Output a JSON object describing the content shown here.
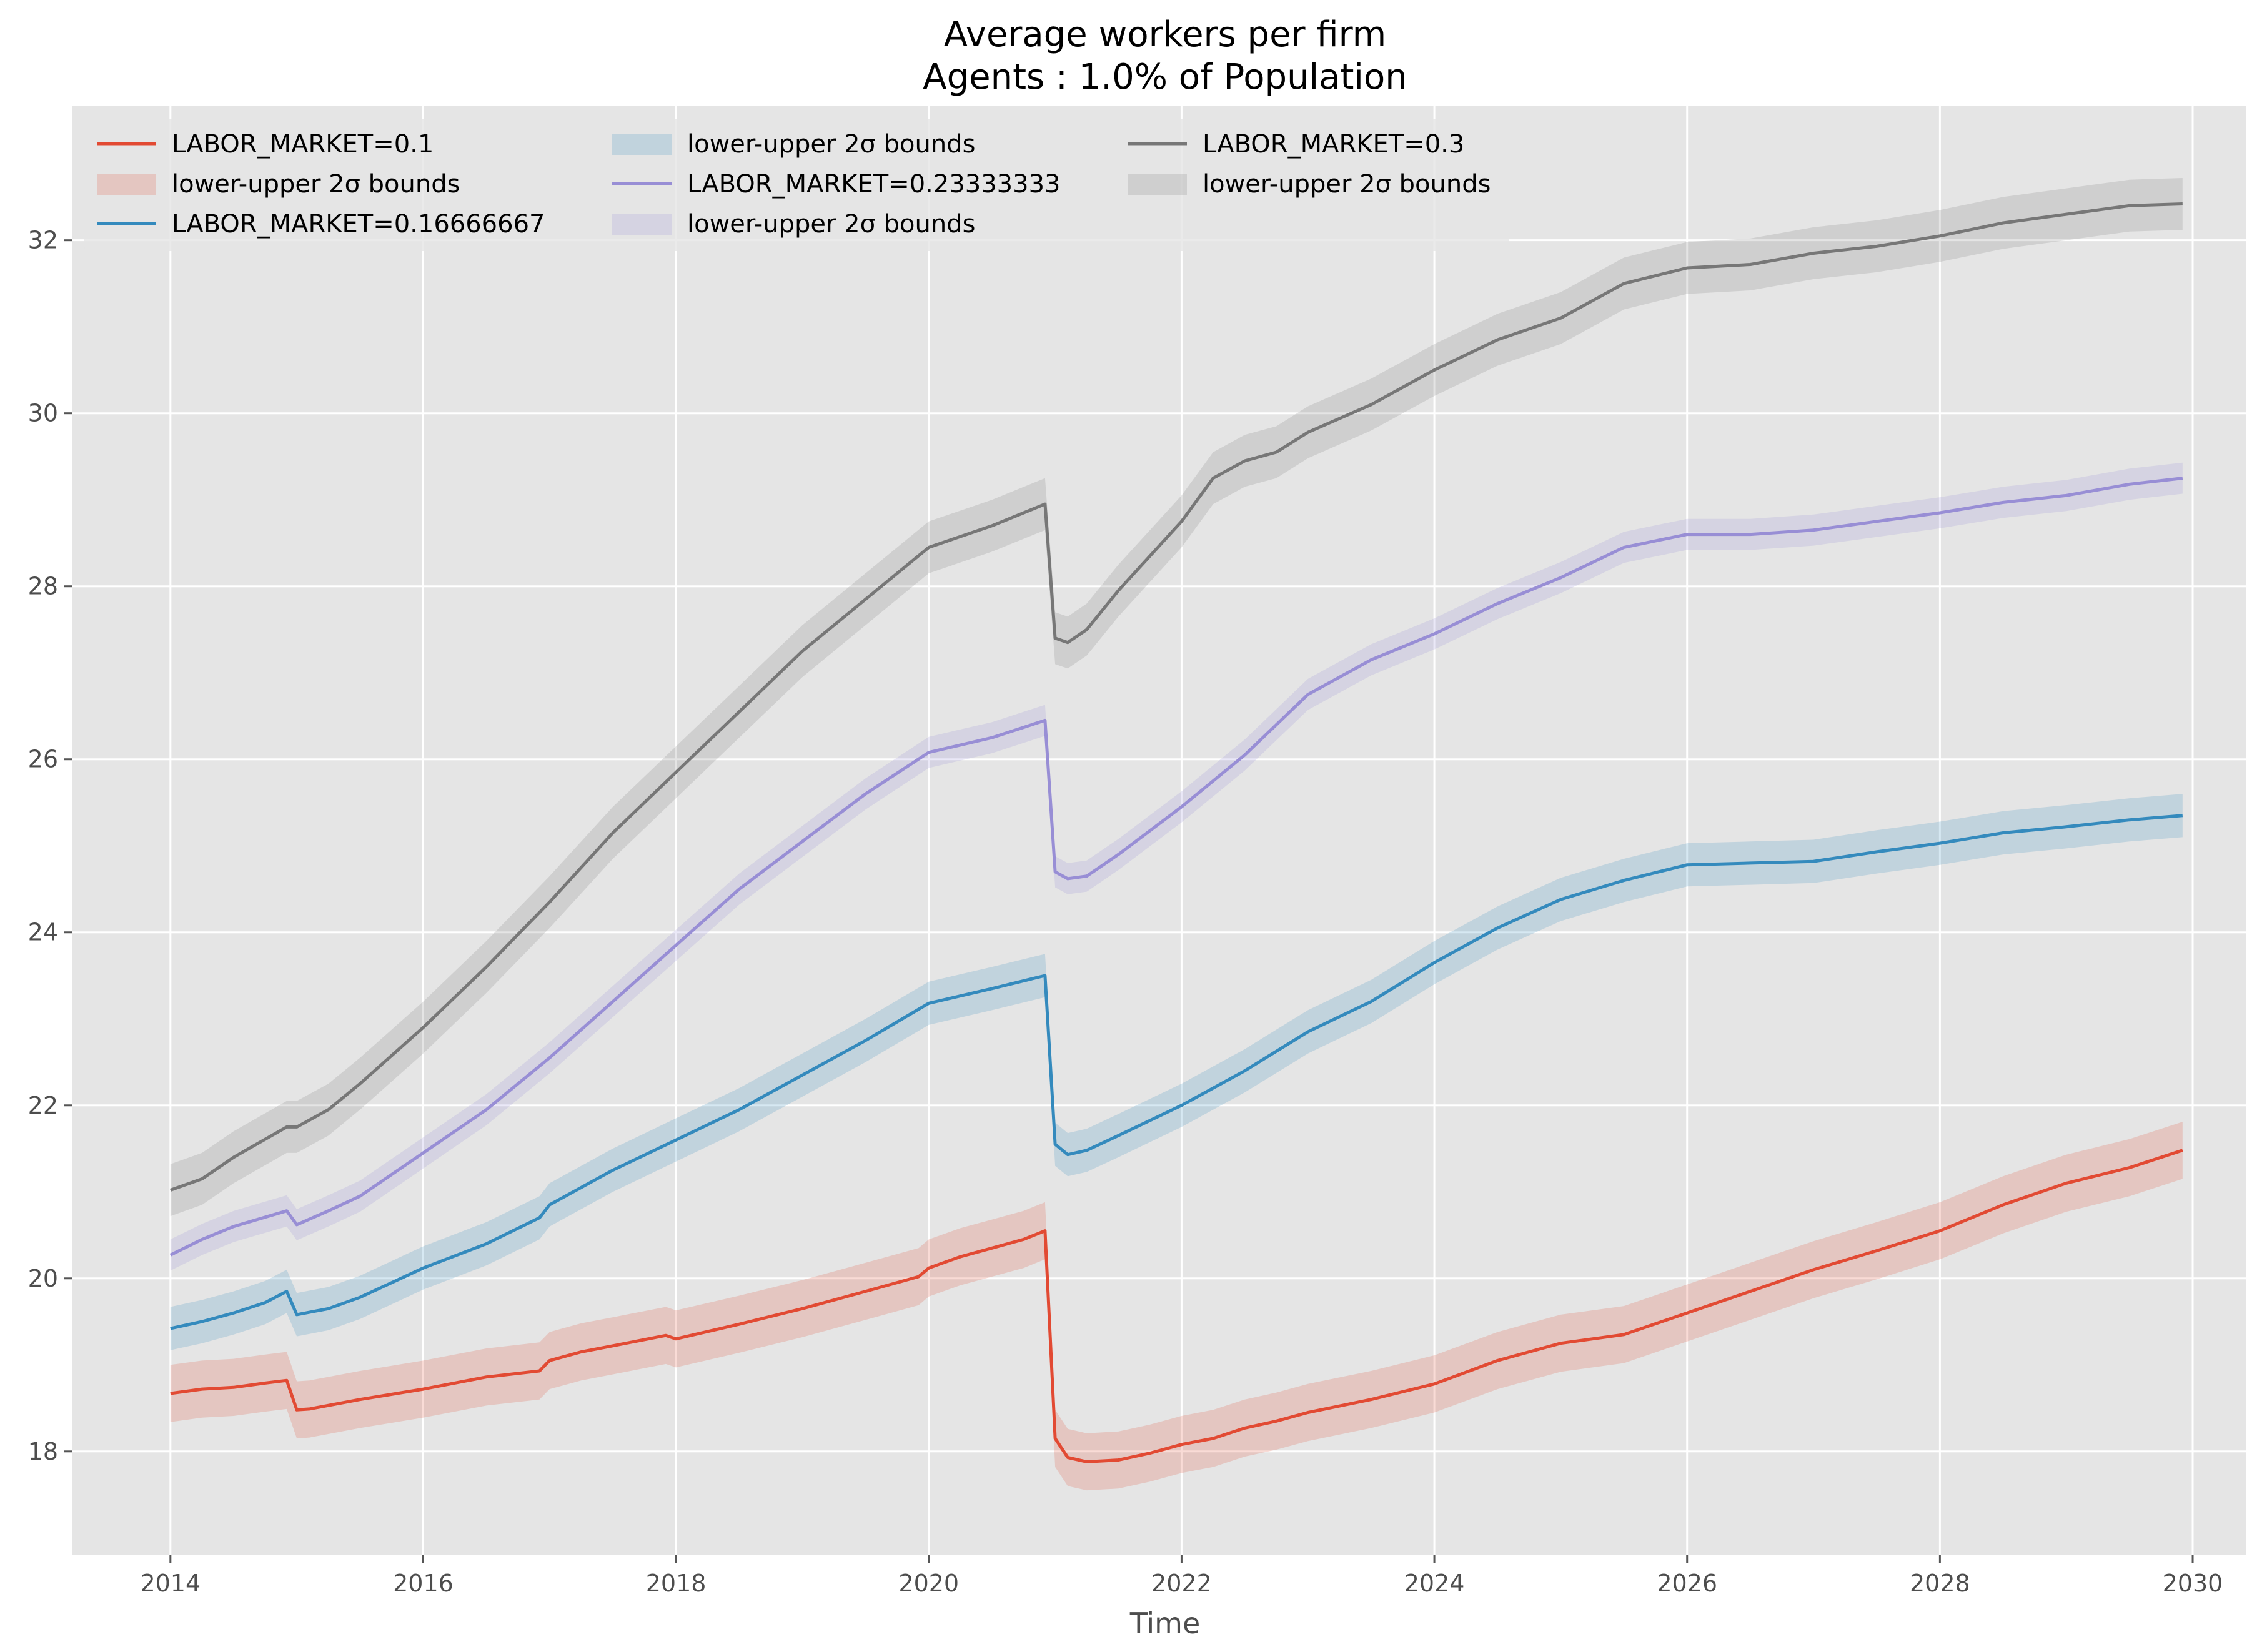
{
  "chart_data": {
    "type": "line",
    "title": "Average workers per firm",
    "subtitle": "Agents : 1.0% of Population",
    "xlabel": "Time",
    "ylabel": "",
    "xlim": [
      2013.22,
      2030.42
    ],
    "ylim": [
      16.8,
      33.55
    ],
    "x_ticks": [
      2014,
      2016,
      2018,
      2020,
      2022,
      2024,
      2026,
      2028,
      2030
    ],
    "x_tick_labels": [
      "2014",
      "2016",
      "2018",
      "2020",
      "2022",
      "2024",
      "2026",
      "2028",
      "2030"
    ],
    "y_ticks": [
      18,
      20,
      22,
      24,
      26,
      28,
      30,
      32
    ],
    "y_tick_labels": [
      "18",
      "20",
      "22",
      "24",
      "26",
      "28",
      "30",
      "32"
    ],
    "grid": true,
    "legend_position": "top-left",
    "legend_columns": 3,
    "background": "#e5e5e5",
    "band_label": "lower-upper 2σ bounds",
    "series": [
      {
        "name": "LABOR_MARKET=0.1",
        "color": "#E24A33",
        "band_halfwidth": 0.33,
        "points": [
          [
            2014.0,
            18.67
          ],
          [
            2014.25,
            18.72
          ],
          [
            2014.5,
            18.74
          ],
          [
            2014.75,
            18.79
          ],
          [
            2014.92,
            18.82
          ],
          [
            2015.0,
            18.48
          ],
          [
            2015.1,
            18.49
          ],
          [
            2015.5,
            18.6
          ],
          [
            2016.0,
            18.72
          ],
          [
            2016.5,
            18.86
          ],
          [
            2016.92,
            18.93
          ],
          [
            2017.0,
            19.05
          ],
          [
            2017.25,
            19.15
          ],
          [
            2017.5,
            19.22
          ],
          [
            2017.92,
            19.34
          ],
          [
            2018.0,
            19.3
          ],
          [
            2018.5,
            19.47
          ],
          [
            2019.0,
            19.65
          ],
          [
            2019.5,
            19.85
          ],
          [
            2019.92,
            20.02
          ],
          [
            2020.0,
            20.12
          ],
          [
            2020.25,
            20.25
          ],
          [
            2020.5,
            20.35
          ],
          [
            2020.75,
            20.45
          ],
          [
            2020.92,
            20.55
          ],
          [
            2021.0,
            18.15
          ],
          [
            2021.1,
            17.93
          ],
          [
            2021.25,
            17.88
          ],
          [
            2021.5,
            17.9
          ],
          [
            2021.75,
            17.98
          ],
          [
            2022.0,
            18.08
          ],
          [
            2022.25,
            18.15
          ],
          [
            2022.5,
            18.27
          ],
          [
            2022.75,
            18.35
          ],
          [
            2023.0,
            18.45
          ],
          [
            2023.5,
            18.6
          ],
          [
            2024.0,
            18.78
          ],
          [
            2024.5,
            19.05
          ],
          [
            2025.0,
            19.25
          ],
          [
            2025.5,
            19.35
          ],
          [
            2026.0,
            19.6
          ],
          [
            2026.5,
            19.85
          ],
          [
            2027.0,
            20.1
          ],
          [
            2027.5,
            20.32
          ],
          [
            2028.0,
            20.55
          ],
          [
            2028.5,
            20.85
          ],
          [
            2029.0,
            21.1
          ],
          [
            2029.5,
            21.28
          ],
          [
            2029.92,
            21.48
          ]
        ]
      },
      {
        "name": "LABOR_MARKET=0.16666667",
        "color": "#348ABD",
        "band_halfwidth": 0.25,
        "points": [
          [
            2014.0,
            19.42
          ],
          [
            2014.25,
            19.5
          ],
          [
            2014.5,
            19.6
          ],
          [
            2014.75,
            19.72
          ],
          [
            2014.92,
            19.85
          ],
          [
            2015.0,
            19.58
          ],
          [
            2015.25,
            19.65
          ],
          [
            2015.5,
            19.78
          ],
          [
            2016.0,
            20.12
          ],
          [
            2016.5,
            20.4
          ],
          [
            2016.92,
            20.7
          ],
          [
            2017.0,
            20.85
          ],
          [
            2017.5,
            21.25
          ],
          [
            2018.0,
            21.6
          ],
          [
            2018.5,
            21.95
          ],
          [
            2019.0,
            22.35
          ],
          [
            2019.5,
            22.75
          ],
          [
            2020.0,
            23.18
          ],
          [
            2020.5,
            23.35
          ],
          [
            2020.92,
            23.5
          ],
          [
            2021.0,
            21.55
          ],
          [
            2021.1,
            21.43
          ],
          [
            2021.25,
            21.48
          ],
          [
            2021.5,
            21.65
          ],
          [
            2022.0,
            22.0
          ],
          [
            2022.5,
            22.4
          ],
          [
            2023.0,
            22.85
          ],
          [
            2023.5,
            23.2
          ],
          [
            2024.0,
            23.65
          ],
          [
            2024.5,
            24.05
          ],
          [
            2025.0,
            24.38
          ],
          [
            2025.5,
            24.6
          ],
          [
            2026.0,
            24.78
          ],
          [
            2026.5,
            24.8
          ],
          [
            2027.0,
            24.82
          ],
          [
            2027.5,
            24.93
          ],
          [
            2028.0,
            25.03
          ],
          [
            2028.5,
            25.15
          ],
          [
            2029.0,
            25.22
          ],
          [
            2029.5,
            25.3
          ],
          [
            2029.92,
            25.35
          ]
        ]
      },
      {
        "name": "LABOR_MARKET=0.23333333",
        "color": "#988ED5",
        "band_halfwidth": 0.18,
        "points": [
          [
            2014.0,
            20.27
          ],
          [
            2014.25,
            20.45
          ],
          [
            2014.5,
            20.6
          ],
          [
            2014.92,
            20.78
          ],
          [
            2015.0,
            20.62
          ],
          [
            2015.25,
            20.78
          ],
          [
            2015.5,
            20.95
          ],
          [
            2016.0,
            21.45
          ],
          [
            2016.5,
            21.95
          ],
          [
            2017.0,
            22.55
          ],
          [
            2017.5,
            23.2
          ],
          [
            2018.0,
            23.85
          ],
          [
            2018.5,
            24.5
          ],
          [
            2019.0,
            25.05
          ],
          [
            2019.5,
            25.6
          ],
          [
            2020.0,
            26.08
          ],
          [
            2020.5,
            26.25
          ],
          [
            2020.92,
            26.45
          ],
          [
            2021.0,
            24.7
          ],
          [
            2021.1,
            24.62
          ],
          [
            2021.25,
            24.65
          ],
          [
            2021.5,
            24.9
          ],
          [
            2022.0,
            25.45
          ],
          [
            2022.5,
            26.05
          ],
          [
            2023.0,
            26.75
          ],
          [
            2023.5,
            27.15
          ],
          [
            2024.0,
            27.45
          ],
          [
            2024.5,
            27.8
          ],
          [
            2025.0,
            28.1
          ],
          [
            2025.5,
            28.45
          ],
          [
            2026.0,
            28.6
          ],
          [
            2026.5,
            28.6
          ],
          [
            2027.0,
            28.65
          ],
          [
            2027.5,
            28.75
          ],
          [
            2028.0,
            28.85
          ],
          [
            2028.5,
            28.97
          ],
          [
            2029.0,
            29.05
          ],
          [
            2029.5,
            29.18
          ],
          [
            2029.92,
            29.25
          ]
        ]
      },
      {
        "name": "LABOR_MARKET=0.3",
        "color": "#777777",
        "band_halfwidth": 0.3,
        "points": [
          [
            2014.0,
            21.02
          ],
          [
            2014.25,
            21.15
          ],
          [
            2014.5,
            21.4
          ],
          [
            2014.92,
            21.75
          ],
          [
            2015.0,
            21.75
          ],
          [
            2015.25,
            21.95
          ],
          [
            2015.5,
            22.25
          ],
          [
            2016.0,
            22.9
          ],
          [
            2016.5,
            23.6
          ],
          [
            2017.0,
            24.35
          ],
          [
            2017.5,
            25.15
          ],
          [
            2018.0,
            25.85
          ],
          [
            2018.5,
            26.55
          ],
          [
            2019.0,
            27.25
          ],
          [
            2019.5,
            27.85
          ],
          [
            2020.0,
            28.45
          ],
          [
            2020.5,
            28.7
          ],
          [
            2020.92,
            28.95
          ],
          [
            2021.0,
            27.4
          ],
          [
            2021.1,
            27.35
          ],
          [
            2021.25,
            27.5
          ],
          [
            2021.5,
            27.95
          ],
          [
            2022.0,
            28.75
          ],
          [
            2022.25,
            29.25
          ],
          [
            2022.5,
            29.45
          ],
          [
            2022.75,
            29.55
          ],
          [
            2023.0,
            29.78
          ],
          [
            2023.5,
            30.1
          ],
          [
            2024.0,
            30.5
          ],
          [
            2024.5,
            30.85
          ],
          [
            2025.0,
            31.1
          ],
          [
            2025.5,
            31.5
          ],
          [
            2026.0,
            31.68
          ],
          [
            2026.5,
            31.72
          ],
          [
            2027.0,
            31.85
          ],
          [
            2027.5,
            31.93
          ],
          [
            2028.0,
            32.05
          ],
          [
            2028.5,
            32.2
          ],
          [
            2029.0,
            32.3
          ],
          [
            2029.5,
            32.4
          ],
          [
            2029.92,
            32.42
          ]
        ]
      }
    ]
  }
}
